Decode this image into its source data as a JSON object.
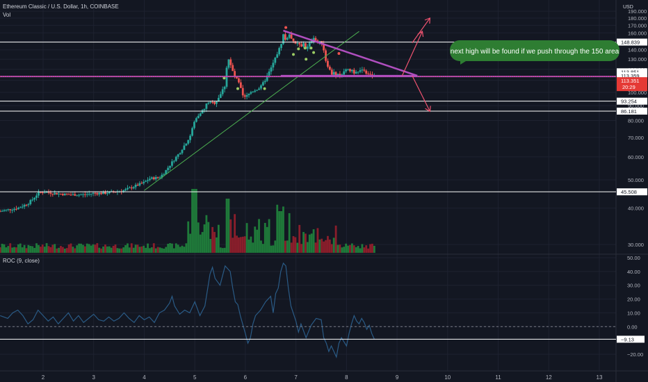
{
  "header": {
    "title": "Ethereum Classic / U.S. Dollar, 1h, COINBASE",
    "volume_label": "Vol",
    "currency": "USD"
  },
  "indicator": {
    "label": "ROC (9, close)"
  },
  "annotation": {
    "text": "next high will be found if we push through the 150 area"
  },
  "colors": {
    "background": "#131722",
    "up": "#26a69a",
    "down": "#ef5350",
    "vol_up": "#1f7a3a",
    "vol_down": "#8b1e2b",
    "trendline": "#4caf50",
    "triangle": "#b04fbf",
    "arrow": "#ef5370",
    "annotation_bg": "#2e7d32",
    "level_line": "#ffffff",
    "roc_line": "#2a5b86",
    "price_tag": "#e53935"
  },
  "chart_data": [
    {
      "type": "candlestick",
      "panel": "price",
      "title": "Ethereum Classic / U.S. Dollar, 1h, COINBASE",
      "x_tick_labels": [
        "2",
        "3",
        "4",
        "5",
        "6",
        "7",
        "8",
        "9",
        "10",
        "11",
        "12",
        "13"
      ],
      "x_ticks": [
        2,
        3,
        4,
        5,
        6,
        7,
        8,
        9,
        10,
        11,
        12,
        13
      ],
      "xlim": [
        1.15,
        13.3
      ],
      "y_tick_labels": [
        "190.000",
        "180.000",
        "170.000",
        "160.000",
        "150.000",
        "140.000",
        "130.000",
        "120.000",
        "110.000",
        "100.000",
        "90.000",
        "80.000",
        "70.000",
        "60.000",
        "50.000",
        "40.000",
        "30.000"
      ],
      "ylim": [
        26,
        190
      ],
      "scale": "log",
      "horizontal_levels": [
        148.839,
        113.851,
        113.359,
        113.351,
        93.254,
        86.181,
        45.508
      ],
      "level_labels": [
        "148.839",
        "113.851",
        "113.359",
        "113.351",
        "93.254",
        "86.181",
        "45.508"
      ],
      "current_price": "113.351",
      "countdown": "20:29",
      "trendline_points": [
        [
          4.0,
          46
        ],
        [
          6.2,
          96
        ],
        [
          7.25,
          132
        ],
        [
          8.25,
          162
        ]
      ],
      "triangle_upper": [
        [
          6.75,
          163
        ],
        [
          9.4,
          114
        ]
      ],
      "triangle_lower": [
        [
          6.7,
          114
        ],
        [
          9.4,
          114
        ]
      ],
      "arrow_up_1": [
        [
          9.1,
          114
        ],
        [
          9.5,
          162
        ]
      ],
      "arrow_up_2": [
        [
          9.3,
          148
        ],
        [
          9.65,
          180
        ]
      ],
      "arrow_down": [
        [
          9.3,
          114
        ],
        [
          9.65,
          86
        ]
      ],
      "markers": [
        {
          "x": 6.8,
          "y": 167,
          "color": "down"
        },
        {
          "x": 6.95,
          "y": 135,
          "color": "up"
        },
        {
          "x": 7.05,
          "y": 141,
          "color": "up"
        },
        {
          "x": 7.18,
          "y": 142,
          "color": "up"
        },
        {
          "x": 7.3,
          "y": 142,
          "color": "up"
        },
        {
          "x": 7.35,
          "y": 137,
          "color": "up"
        },
        {
          "x": 7.2,
          "y": 130,
          "color": "up"
        },
        {
          "x": 7.85,
          "y": 136,
          "color": "down"
        },
        {
          "x": 5.58,
          "y": 112,
          "color": "up"
        },
        {
          "x": 5.85,
          "y": 103,
          "color": "up"
        },
        {
          "x": 6.38,
          "y": 103,
          "color": "up"
        }
      ],
      "close_path": [
        [
          1.15,
          39
        ],
        [
          1.3,
          39.5
        ],
        [
          1.5,
          40
        ],
        [
          1.7,
          41.5
        ],
        [
          1.8,
          43
        ],
        [
          1.9,
          45
        ],
        [
          2.0,
          45.5
        ],
        [
          2.2,
          45
        ],
        [
          2.5,
          44.5
        ],
        [
          2.8,
          44.5
        ],
        [
          3.0,
          45
        ],
        [
          3.2,
          45
        ],
        [
          3.4,
          45.5
        ],
        [
          3.6,
          46
        ],
        [
          3.8,
          47.5
        ],
        [
          4.0,
          49
        ],
        [
          4.1,
          50.5
        ],
        [
          4.3,
          51
        ],
        [
          4.4,
          53
        ],
        [
          4.5,
          56
        ],
        [
          4.6,
          59
        ],
        [
          4.7,
          62
        ],
        [
          4.8,
          66
        ],
        [
          4.9,
          70
        ],
        [
          5.0,
          80
        ],
        [
          5.1,
          85
        ],
        [
          5.2,
          88
        ],
        [
          5.25,
          93
        ],
        [
          5.3,
          92
        ],
        [
          5.4,
          92
        ],
        [
          5.5,
          98
        ],
        [
          5.6,
          106
        ],
        [
          5.65,
          133
        ],
        [
          5.7,
          125
        ],
        [
          5.75,
          118
        ],
        [
          5.8,
          112
        ],
        [
          5.85,
          110
        ],
        [
          5.9,
          104
        ],
        [
          5.95,
          97
        ],
        [
          6.0,
          96
        ],
        [
          6.1,
          100
        ],
        [
          6.2,
          102
        ],
        [
          6.3,
          104
        ],
        [
          6.4,
          111
        ],
        [
          6.5,
          120
        ],
        [
          6.6,
          132
        ],
        [
          6.7,
          145
        ],
        [
          6.75,
          158
        ],
        [
          6.8,
          150
        ],
        [
          6.85,
          158
        ],
        [
          6.9,
          155
        ],
        [
          6.95,
          150
        ],
        [
          7.0,
          145
        ],
        [
          7.05,
          148
        ],
        [
          7.1,
          142
        ],
        [
          7.15,
          148
        ],
        [
          7.2,
          140
        ],
        [
          7.25,
          145
        ],
        [
          7.3,
          150
        ],
        [
          7.35,
          155
        ],
        [
          7.4,
          150
        ],
        [
          7.45,
          148
        ],
        [
          7.5,
          150
        ],
        [
          7.55,
          140
        ],
        [
          7.6,
          126
        ],
        [
          7.65,
          122
        ],
        [
          7.7,
          115
        ],
        [
          7.75,
          118
        ],
        [
          7.8,
          113
        ],
        [
          7.85,
          116
        ],
        [
          7.9,
          113
        ],
        [
          7.95,
          119
        ],
        [
          8.0,
          121
        ],
        [
          8.05,
          118
        ],
        [
          8.1,
          120
        ],
        [
          8.15,
          117
        ],
        [
          8.2,
          119
        ],
        [
          8.25,
          116
        ],
        [
          8.3,
          121
        ],
        [
          8.35,
          119
        ],
        [
          8.4,
          116
        ],
        [
          8.45,
          117
        ],
        [
          8.5,
          114
        ],
        [
          8.55,
          113.35
        ]
      ]
    },
    {
      "type": "bar",
      "panel": "volume",
      "series_name": "Vol"
    },
    {
      "type": "line",
      "panel": "roc",
      "title": "ROC (9, close)",
      "y_tick_labels": [
        "50.00",
        "40.00",
        "30.00",
        "20.00",
        "10.00",
        "0.00",
        "−20.00"
      ],
      "ylim": [
        -25,
        53
      ],
      "current_value": "−9.13",
      "roc_values": [
        [
          1.15,
          8
        ],
        [
          1.3,
          6
        ],
        [
          1.4,
          10
        ],
        [
          1.5,
          12
        ],
        [
          1.6,
          8
        ],
        [
          1.7,
          2
        ],
        [
          1.8,
          5
        ],
        [
          1.9,
          12
        ],
        [
          2.0,
          8
        ],
        [
          2.1,
          4
        ],
        [
          2.2,
          7
        ],
        [
          2.3,
          2
        ],
        [
          2.4,
          6
        ],
        [
          2.5,
          10
        ],
        [
          2.6,
          4
        ],
        [
          2.7,
          8
        ],
        [
          2.8,
          3
        ],
        [
          2.9,
          6
        ],
        [
          3.0,
          9
        ],
        [
          3.1,
          5
        ],
        [
          3.2,
          4
        ],
        [
          3.3,
          7
        ],
        [
          3.4,
          4
        ],
        [
          3.5,
          6
        ],
        [
          3.6,
          10
        ],
        [
          3.7,
          6
        ],
        [
          3.8,
          3
        ],
        [
          3.9,
          8
        ],
        [
          4.0,
          5
        ],
        [
          4.1,
          7
        ],
        [
          4.2,
          3
        ],
        [
          4.3,
          10
        ],
        [
          4.4,
          12
        ],
        [
          4.5,
          17
        ],
        [
          4.55,
          22
        ],
        [
          4.6,
          15
        ],
        [
          4.7,
          9
        ],
        [
          4.8,
          12
        ],
        [
          4.9,
          10
        ],
        [
          5.0,
          18
        ],
        [
          5.1,
          8
        ],
        [
          5.2,
          15
        ],
        [
          5.3,
          38
        ],
        [
          5.35,
          43
        ],
        [
          5.4,
          35
        ],
        [
          5.5,
          30
        ],
        [
          5.6,
          44
        ],
        [
          5.7,
          40
        ],
        [
          5.75,
          28
        ],
        [
          5.8,
          18
        ],
        [
          5.85,
          16
        ],
        [
          5.9,
          8
        ],
        [
          6.0,
          -5
        ],
        [
          6.05,
          -12
        ],
        [
          6.1,
          -8
        ],
        [
          6.15,
          2
        ],
        [
          6.2,
          8
        ],
        [
          6.3,
          12
        ],
        [
          6.4,
          18
        ],
        [
          6.5,
          22
        ],
        [
          6.55,
          10
        ],
        [
          6.6,
          24
        ],
        [
          6.65,
          28
        ],
        [
          6.7,
          40
        ],
        [
          6.75,
          46
        ],
        [
          6.8,
          44
        ],
        [
          6.85,
          28
        ],
        [
          6.9,
          15
        ],
        [
          7.0,
          4
        ],
        [
          7.05,
          -4
        ],
        [
          7.1,
          2
        ],
        [
          7.2,
          -8
        ],
        [
          7.3,
          1
        ],
        [
          7.4,
          6
        ],
        [
          7.5,
          5
        ],
        [
          7.55,
          -8
        ],
        [
          7.6,
          -12
        ],
        [
          7.65,
          -18
        ],
        [
          7.7,
          -14
        ],
        [
          7.75,
          -18
        ],
        [
          7.8,
          -22
        ],
        [
          7.85,
          -12
        ],
        [
          7.9,
          -8
        ],
        [
          8.0,
          -14
        ],
        [
          8.05,
          -5
        ],
        [
          8.1,
          2
        ],
        [
          8.15,
          8
        ],
        [
          8.2,
          4
        ],
        [
          8.25,
          2
        ],
        [
          8.3,
          6
        ],
        [
          8.35,
          3
        ],
        [
          8.4,
          -2
        ],
        [
          8.45,
          1
        ],
        [
          8.5,
          -5
        ],
        [
          8.55,
          -9.13
        ]
      ],
      "horizontal_levels": [
        -9.13
      ]
    }
  ]
}
